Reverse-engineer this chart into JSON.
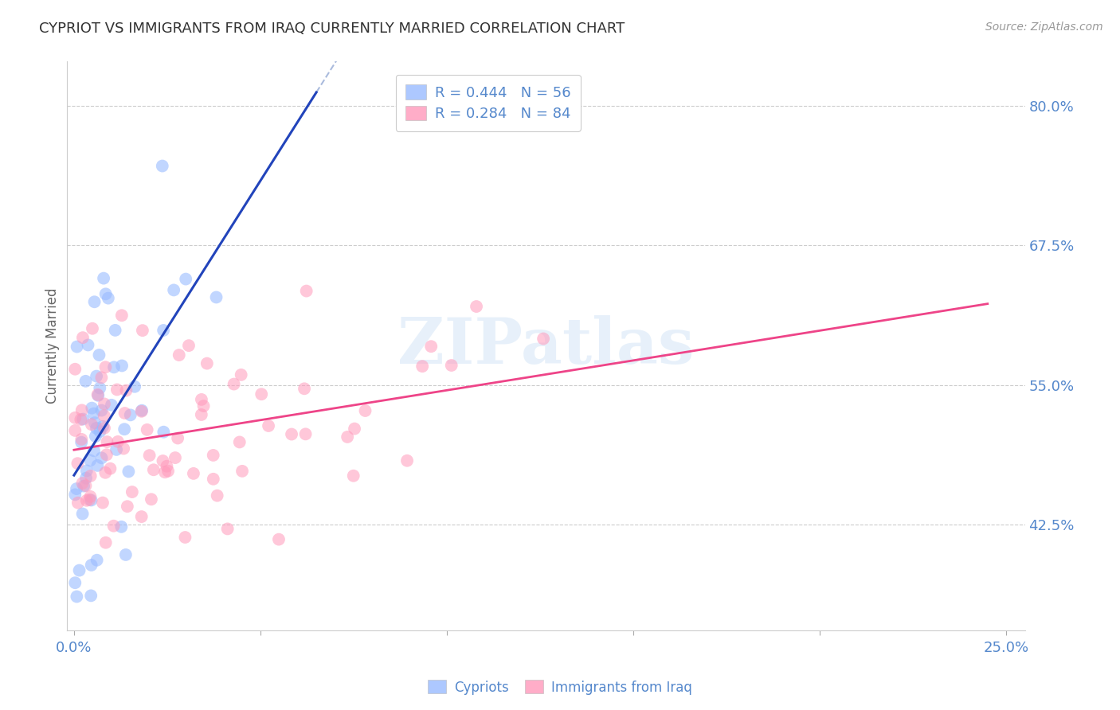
{
  "title": "CYPRIOT VS IMMIGRANTS FROM IRAQ CURRENTLY MARRIED CORRELATION CHART",
  "source": "Source: ZipAtlas.com",
  "ylabel": "Currently Married",
  "watermark": "ZIPatlas",
  "xmin": -0.002,
  "xmax": 0.255,
  "ymin": 0.33,
  "ymax": 0.84,
  "yticks": [
    0.425,
    0.55,
    0.675,
    0.8
  ],
  "ytick_labels": [
    "42.5%",
    "55.0%",
    "67.5%",
    "80.0%"
  ],
  "xticks": [
    0.0,
    0.05,
    0.1,
    0.15,
    0.2,
    0.25
  ],
  "xtick_labels": [
    "0.0%",
    "",
    "",
    "",
    "",
    "25.0%"
  ],
  "legend_entry1": "R = 0.444   N = 56",
  "legend_entry2": "R = 0.284   N = 84",
  "color_blue": "#99BBFF",
  "color_pink": "#FF99BB",
  "color_blue_line": "#2244BB",
  "color_pink_line": "#EE4488",
  "color_blue_dashed": "#AABBDD",
  "color_axis_labels": "#5588CC",
  "title_color": "#333333",
  "grid_color": "#CCCCCC",
  "background_color": "#FFFFFF"
}
